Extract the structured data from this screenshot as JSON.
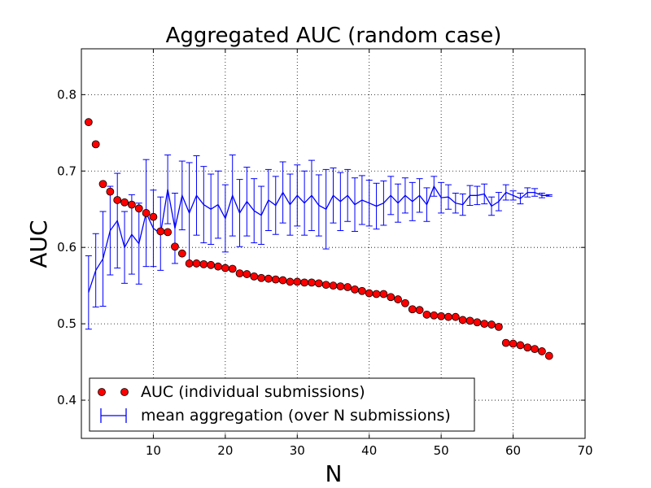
{
  "chart_data": {
    "type": "scatter",
    "title": "Aggregated AUC (random case)",
    "xlabel": "N",
    "ylabel": "AUC",
    "xlim": [
      0,
      70
    ],
    "ylim": [
      0.35,
      0.86
    ],
    "xticks": [
      10,
      20,
      30,
      40,
      50,
      60,
      70
    ],
    "yticks": [
      0.4,
      0.5,
      0.6,
      0.7,
      0.8
    ],
    "grid": true,
    "legend_position": "bottom-left",
    "series": [
      {
        "name": "AUC (individual submissions)",
        "type": "scatter",
        "color": "#ff0000",
        "x": [
          1,
          2,
          3,
          4,
          5,
          6,
          7,
          8,
          9,
          10,
          11,
          12,
          13,
          14,
          15,
          16,
          17,
          18,
          19,
          20,
          21,
          22,
          23,
          24,
          25,
          26,
          27,
          28,
          29,
          30,
          31,
          32,
          33,
          34,
          35,
          36,
          37,
          38,
          39,
          40,
          41,
          42,
          43,
          44,
          45,
          46,
          47,
          48,
          49,
          50,
          51,
          52,
          53,
          54,
          55,
          56,
          57,
          58,
          59,
          60,
          61,
          62,
          63,
          64,
          65
        ],
        "y": [
          0.764,
          0.735,
          0.683,
          0.673,
          0.662,
          0.659,
          0.656,
          0.651,
          0.645,
          0.64,
          0.621,
          0.62,
          0.601,
          0.592,
          0.579,
          0.579,
          0.578,
          0.577,
          0.575,
          0.573,
          0.572,
          0.566,
          0.565,
          0.562,
          0.56,
          0.559,
          0.558,
          0.557,
          0.555,
          0.555,
          0.554,
          0.554,
          0.553,
          0.551,
          0.55,
          0.549,
          0.548,
          0.545,
          0.543,
          0.54,
          0.539,
          0.539,
          0.535,
          0.532,
          0.527,
          0.519,
          0.518,
          0.512,
          0.511,
          0.51,
          0.509,
          0.509,
          0.505,
          0.504,
          0.502,
          0.5,
          0.499,
          0.496,
          0.475,
          0.474,
          0.472,
          0.469,
          0.467,
          0.464,
          0.458
        ]
      },
      {
        "name": "mean aggregation (over N submissions)",
        "type": "line-errorbar",
        "color": "#0000ff",
        "x": [
          1,
          2,
          3,
          4,
          5,
          6,
          7,
          8,
          9,
          10,
          11,
          12,
          13,
          14,
          15,
          16,
          17,
          18,
          19,
          20,
          21,
          22,
          23,
          24,
          25,
          26,
          27,
          28,
          29,
          30,
          31,
          32,
          33,
          34,
          35,
          36,
          37,
          38,
          39,
          40,
          41,
          42,
          43,
          44,
          45,
          46,
          47,
          48,
          49,
          50,
          51,
          52,
          53,
          54,
          55,
          56,
          57,
          58,
          59,
          60,
          61,
          62,
          63,
          64,
          65
        ],
        "y": [
          0.541,
          0.57,
          0.585,
          0.622,
          0.635,
          0.6,
          0.617,
          0.605,
          0.645,
          0.625,
          0.618,
          0.676,
          0.625,
          0.668,
          0.645,
          0.668,
          0.656,
          0.65,
          0.656,
          0.638,
          0.668,
          0.645,
          0.66,
          0.648,
          0.642,
          0.662,
          0.655,
          0.672,
          0.656,
          0.668,
          0.658,
          0.668,
          0.655,
          0.65,
          0.668,
          0.66,
          0.668,
          0.656,
          0.662,
          0.658,
          0.654,
          0.658,
          0.668,
          0.658,
          0.668,
          0.66,
          0.668,
          0.656,
          0.68,
          0.665,
          0.666,
          0.658,
          0.656,
          0.668,
          0.668,
          0.67,
          0.654,
          0.66,
          0.672,
          0.668,
          0.664,
          0.672,
          0.672,
          0.668,
          0.668
        ],
        "err": [
          0.048,
          0.048,
          0.062,
          0.058,
          0.062,
          0.047,
          0.052,
          0.053,
          0.07,
          0.05,
          0.048,
          0.045,
          0.046,
          0.045,
          0.066,
          0.052,
          0.05,
          0.046,
          0.044,
          0.044,
          0.053,
          0.044,
          0.045,
          0.042,
          0.038,
          0.04,
          0.038,
          0.04,
          0.04,
          0.04,
          0.042,
          0.046,
          0.04,
          0.052,
          0.036,
          0.038,
          0.034,
          0.035,
          0.032,
          0.03,
          0.03,
          0.029,
          0.025,
          0.025,
          0.023,
          0.025,
          0.022,
          0.022,
          0.013,
          0.02,
          0.016,
          0.013,
          0.014,
          0.013,
          0.012,
          0.013,
          0.012,
          0.012,
          0.01,
          0.006,
          0.007,
          0.006,
          0.005,
          0.003,
          0.001
        ]
      }
    ]
  }
}
